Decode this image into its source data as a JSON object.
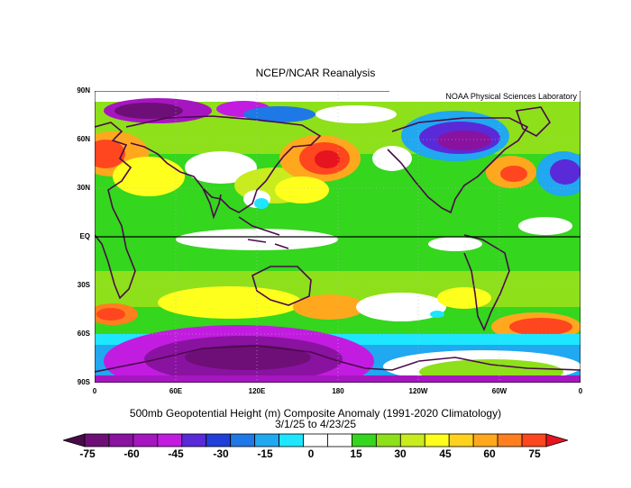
{
  "header": {
    "title": "NCEP/NCAR Reanalysis"
  },
  "map": {
    "credit": "NOAA Physical Sciences Laboratory",
    "lat_labels": [
      "90N",
      "60N",
      "30N",
      "EQ",
      "30S",
      "60S",
      "90S"
    ],
    "lon_labels": [
      "0",
      "60E",
      "120E",
      "180",
      "120W",
      "60W",
      "0"
    ]
  },
  "caption": {
    "line1": "500mb Geopotential Height (m) Composite Anomaly (1991-2020 Climatology)",
    "line2": "3/1/25  to 4/23/25"
  },
  "colorbar": {
    "labels": [
      "-75",
      "-60",
      "-45",
      "-30",
      "-15",
      "0",
      "15",
      "30",
      "45",
      "60",
      "75"
    ],
    "colors": [
      "#4a0a4a",
      "#6e0f78",
      "#8a12a0",
      "#a616c0",
      "#c21ce0",
      "#5a2ad8",
      "#1f3fd8",
      "#1e78e6",
      "#20a8f0",
      "#1ee6ff",
      "#ffffff",
      "#ffffff",
      "#34d61e",
      "#8ee01a",
      "#c8ec1e",
      "#ffff1e",
      "#ffd21e",
      "#ffa81e",
      "#ff7f1e",
      "#ff461e",
      "#e6141e"
    ]
  }
}
